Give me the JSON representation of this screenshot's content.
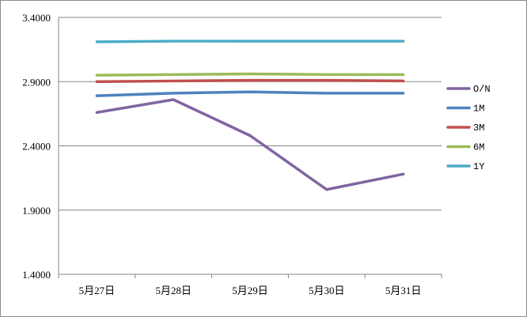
{
  "chart_data": {
    "type": "line",
    "title": "",
    "xlabel": "",
    "ylabel": "",
    "categories": [
      "5月27日",
      "5月28日",
      "5月29日",
      "5月30日",
      "5月31日"
    ],
    "y_ticks": [
      "1.4000",
      "1.9000",
      "2.4000",
      "2.9000",
      "3.4000"
    ],
    "ylim": [
      1.4,
      3.4
    ],
    "grid": "horizontal",
    "legend_position": "right",
    "series": [
      {
        "name": "O/N",
        "color": "#8064A2",
        "values": [
          2.66,
          2.76,
          2.48,
          2.06,
          2.18
        ]
      },
      {
        "name": "1M",
        "color": "#4F81BD",
        "values": [
          2.79,
          2.81,
          2.82,
          2.81,
          2.81
        ]
      },
      {
        "name": "3M",
        "color": "#C0504D",
        "values": [
          2.9,
          2.905,
          2.91,
          2.91,
          2.905
        ]
      },
      {
        "name": "6M",
        "color": "#9BBB59",
        "values": [
          2.95,
          2.955,
          2.96,
          2.955,
          2.955
        ]
      },
      {
        "name": "1Y",
        "color": "#4BACC6",
        "values": [
          3.21,
          3.215,
          3.215,
          3.215,
          3.215
        ]
      }
    ]
  }
}
